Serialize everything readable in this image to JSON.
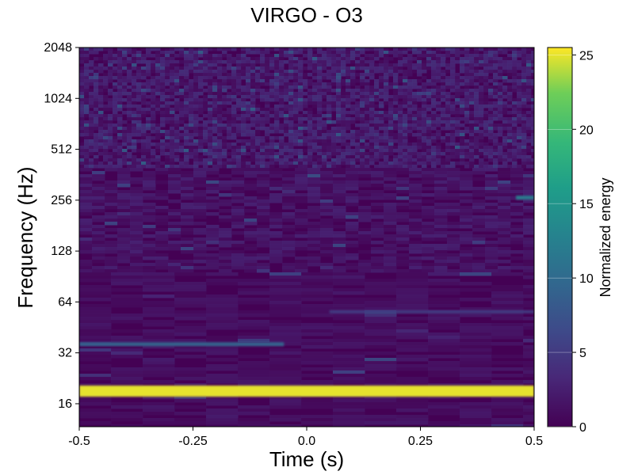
{
  "chart_data": {
    "type": "heatmap",
    "title": "VIRGO - O3",
    "xlabel": "Time (s)",
    "ylabel": "Frequency (Hz)",
    "x_scale": "linear",
    "y_scale": "log2",
    "xlim": [
      -0.5,
      0.5
    ],
    "ylim": [
      11.7,
      2048
    ],
    "x_ticks": [
      -0.5,
      -0.25,
      0.0,
      0.25,
      0.5
    ],
    "x_tick_labels": [
      "-0.5",
      "-0.25",
      "0.0",
      "0.25",
      "0.5"
    ],
    "y_ticks": [
      16,
      32,
      64,
      128,
      256,
      512,
      1024,
      2048
    ],
    "y_tick_labels": [
      "16",
      "32",
      "64",
      "128",
      "256",
      "512",
      "1024",
      "2048"
    ],
    "colorbar": {
      "label": "Normalized energy",
      "range": [
        0,
        25.5
      ],
      "ticks": [
        0,
        5,
        10,
        15,
        20,
        25
      ],
      "tick_labels": [
        "0",
        "5",
        "10",
        "15",
        "20",
        "25"
      ],
      "colormap": "viridis"
    },
    "features": [
      {
        "frequency_hz": 19,
        "time_range_s": [
          -0.5,
          0.5
        ],
        "energy": 25
      },
      {
        "frequency_hz": 36,
        "time_range_s": [
          -0.5,
          -0.05
        ],
        "energy": 9
      },
      {
        "frequency_hz": 265,
        "time_range_s": [
          0.46,
          0.5
        ],
        "energy": 12
      },
      {
        "frequency_hz": 56,
        "time_range_s": [
          0.05,
          0.5
        ],
        "energy": 5
      }
    ],
    "grid": false
  }
}
